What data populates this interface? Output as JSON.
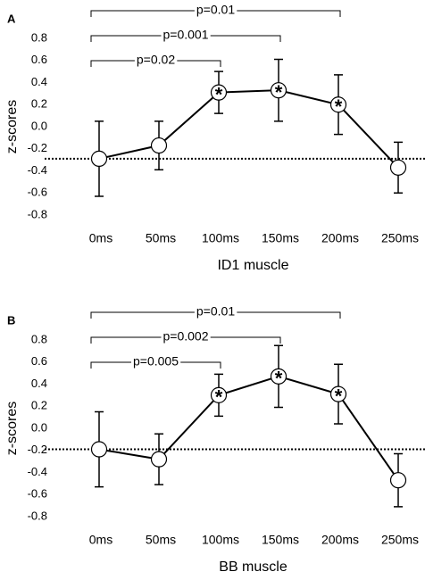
{
  "chart_data": [
    {
      "type": "line",
      "panel_label": "A",
      "ylabel": "z-scores",
      "xlabel": "ID1 muscle",
      "categories": [
        "0ms",
        "50ms",
        "100ms",
        "150ms",
        "200ms",
        "250ms"
      ],
      "values": [
        -0.29,
        -0.17,
        0.31,
        0.33,
        0.2,
        -0.37
      ],
      "errors": [
        0.34,
        0.22,
        0.19,
        0.28,
        0.27,
        0.23
      ],
      "ylim": [
        -0.8,
        0.8
      ],
      "yticks": [
        0.8,
        0.6,
        0.4,
        0.2,
        {
          "value": 0,
          "label": "0.0"
        },
        -0.2,
        -0.4,
        -0.6,
        -0.8
      ],
      "reference_line": -0.29,
      "highlight": [
        "100ms",
        "150ms",
        "200ms"
      ],
      "highlight_symbol": "*",
      "brackets": [
        {
          "label": "p=0.01",
          "from": "0ms",
          "to": "200ms"
        },
        {
          "label": "p=0.001",
          "from": "0ms",
          "to": "150ms"
        },
        {
          "label": "p=0.02",
          "from": "0ms",
          "to": "100ms"
        }
      ]
    },
    {
      "type": "line",
      "panel_label": "B",
      "ylabel": "z-scores",
      "xlabel": "BB muscle",
      "categories": [
        "0ms",
        "50ms",
        "100ms",
        "150ms",
        "200ms",
        "250ms"
      ],
      "values": [
        -0.19,
        -0.28,
        0.3,
        0.47,
        0.31,
        -0.47
      ],
      "errors": [
        0.34,
        0.23,
        0.19,
        0.28,
        0.27,
        0.24
      ],
      "ylim": [
        -0.8,
        0.8
      ],
      "yticks": [
        0.8,
        0.6,
        0.4,
        0.2,
        {
          "value": 0,
          "label": "0.0"
        },
        -0.2,
        -0.4,
        -0.6,
        -0.8
      ],
      "reference_line": -0.19,
      "highlight": [
        "100ms",
        "150ms",
        "200ms"
      ],
      "highlight_symbol": "*",
      "brackets": [
        {
          "label": "p=0.01",
          "from": "0ms",
          "to": "200ms"
        },
        {
          "label": "p=0.002",
          "from": "0ms",
          "to": "150ms"
        },
        {
          "label": "p=0.005",
          "from": "0ms",
          "to": "100ms"
        }
      ]
    }
  ]
}
